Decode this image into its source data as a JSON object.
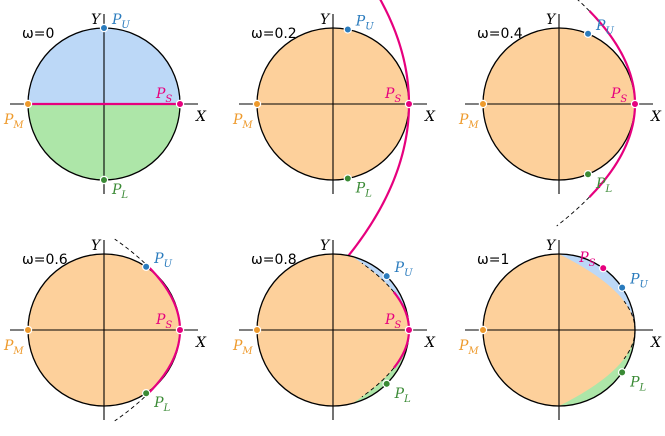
{
  "colors": {
    "upper_region": "#bcd8f7",
    "lower_region": "#ade6a8",
    "middle_region": "#fdd09b",
    "curve": "#e6007e",
    "PU": "#2a7bbd",
    "PS": "#e6007e",
    "PM": "#ee9a2c",
    "PL": "#3a8a35"
  },
  "axis_labels": {
    "x": "X",
    "y": "Y"
  },
  "point_labels": {
    "PU": {
      "main": "P",
      "sub": "U"
    },
    "PS": {
      "main": "P",
      "sub": "S"
    },
    "PM": {
      "main": "P",
      "sub": "M"
    },
    "PL": {
      "main": "P",
      "sub": "L"
    }
  },
  "panels": [
    {
      "omega": 0,
      "label": "ω=0"
    },
    {
      "omega": 0.2,
      "label": "ω=0.2"
    },
    {
      "omega": 0.4,
      "label": "ω=0.4"
    },
    {
      "omega": 0.6,
      "label": "ω=0.6"
    },
    {
      "omega": 0.8,
      "label": "ω=0.8"
    },
    {
      "omega": 1,
      "label": "ω=1"
    }
  ]
}
